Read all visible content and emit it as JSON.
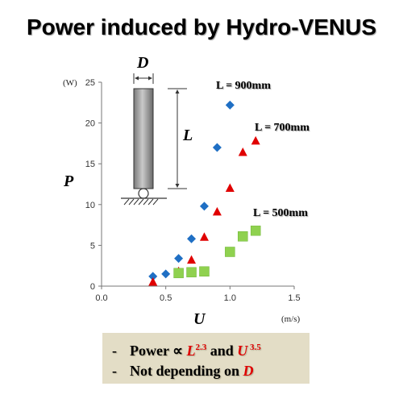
{
  "title": "Power induced by Hydro-VENUS",
  "chart_data": {
    "type": "scatter",
    "xlabel": "U",
    "ylabel": "P",
    "x_unit": "(m/s)",
    "y_unit": "(W)",
    "xlim": [
      0,
      1.5
    ],
    "ylim": [
      0,
      25
    ],
    "x_ticks": [
      0.0,
      0.5,
      1.0,
      1.5
    ],
    "y_ticks": [
      0,
      5,
      10,
      15,
      20,
      25
    ],
    "x_tick_labels": [
      "0.0",
      "0.5",
      "1.0",
      "1.5"
    ],
    "y_tick_labels": [
      "0",
      "5",
      "10",
      "15",
      "20",
      "25"
    ],
    "grid": false,
    "series": [
      {
        "name": "L = 900mm",
        "marker": "diamond",
        "color": "#1f6fc4",
        "x": [
          0.4,
          0.5,
          0.6,
          0.7,
          0.8,
          0.9,
          1.0
        ],
        "y": [
          1.2,
          1.5,
          3.4,
          5.8,
          9.8,
          17.0,
          22.2
        ]
      },
      {
        "name": "L = 700mm",
        "marker": "triangle",
        "color": "#e00000",
        "x": [
          0.4,
          0.6,
          0.7,
          0.8,
          0.9,
          1.0,
          1.1,
          1.2
        ],
        "y": [
          0.5,
          1.8,
          3.2,
          6.0,
          9.1,
          12.0,
          16.4,
          17.8
        ]
      },
      {
        "name": "L = 500mm",
        "marker": "square",
        "color": "#8fd14f",
        "x": [
          0.6,
          0.7,
          0.8,
          1.0,
          1.1,
          1.2
        ],
        "y": [
          1.6,
          1.7,
          1.8,
          4.2,
          6.1,
          6.8
        ]
      }
    ]
  },
  "diagram": {
    "width_label": "D",
    "length_label": "L"
  },
  "notes": {
    "line1": {
      "dash": "-",
      "text_a": "Power ∝ ",
      "l_var": "L",
      "l_exp": "2.3",
      "text_b": " and ",
      "u_var": "U",
      "u_exp": " 3.5"
    },
    "line2": {
      "dash": "-",
      "text_a": "Not depending on ",
      "d_var": "D"
    }
  },
  "colors": {
    "diamond": "#1f6fc4",
    "triangle": "#e00000",
    "square": "#8fd14f",
    "note_background": "#e3ddc6"
  }
}
